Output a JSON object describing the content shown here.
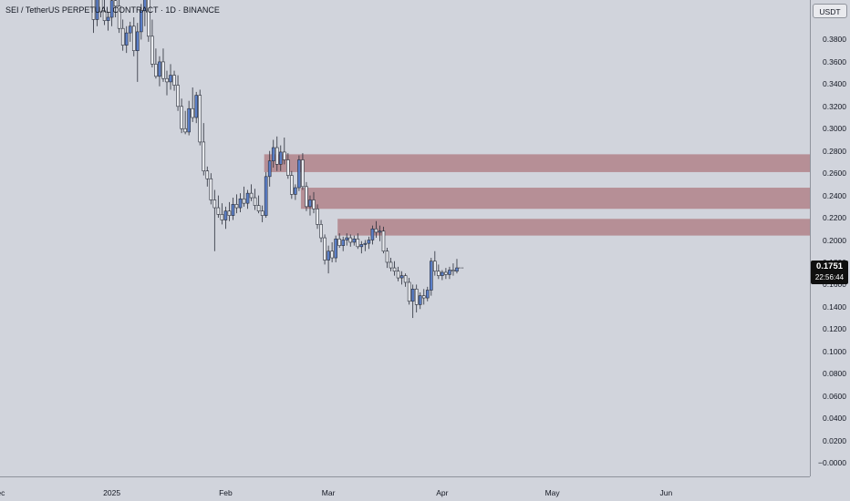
{
  "header": {
    "title": "SEI / TetherUS PERPETUAL CONTRACT · 1D · BINANCE",
    "currency": "USDT"
  },
  "last_price": {
    "value": "0.1751",
    "countdown": "22:56:44"
  },
  "colors": {
    "background": "#d1d4dc",
    "up_body": "#5b7fc8",
    "down_body": "#e9ebef",
    "wick": "#2a2e39",
    "zone": "#b2838a"
  },
  "chart_data": {
    "type": "candlestick",
    "title": "SEI / TetherUS PERPETUAL CONTRACT · 1D · BINANCE",
    "ylabel": "USDT",
    "ylim": [
      -0.01,
      0.42
    ],
    "y_ticks": [
      "0.3800",
      "0.3600",
      "0.3400",
      "0.3200",
      "0.3000",
      "0.2800",
      "0.2600",
      "0.2400",
      "0.2200",
      "0.2000",
      "0.1800",
      "0.1600",
      "0.1400",
      "0.1200",
      "0.1000",
      "0.0800",
      "0.0600",
      "0.0400",
      "0.0200",
      "−0.0000"
    ],
    "y_tick_values": [
      0.38,
      0.36,
      0.34,
      0.32,
      0.3,
      0.28,
      0.26,
      0.24,
      0.22,
      0.2,
      0.18,
      0.16,
      0.14,
      0.12,
      0.1,
      0.08,
      0.06,
      0.04,
      0.02,
      0.0
    ],
    "x_ticks": [
      "Dec",
      "2025",
      "Feb",
      "Mar",
      "Apr",
      "May",
      "Jun"
    ],
    "x_tick_day_index": [
      -26,
      5,
      36,
      64,
      95,
      125,
      156
    ],
    "first_candle_day_index": 0,
    "candles": [
      [
        0.42,
        0.432,
        0.386,
        0.398
      ],
      [
        0.398,
        0.425,
        0.392,
        0.418
      ],
      [
        0.418,
        0.44,
        0.4,
        0.405
      ],
      [
        0.405,
        0.418,
        0.393,
        0.397
      ],
      [
        0.397,
        0.405,
        0.388,
        0.4
      ],
      [
        0.4,
        0.42,
        0.392,
        0.415
      ],
      [
        0.415,
        0.43,
        0.4,
        0.41
      ],
      [
        0.41,
        0.42,
        0.386,
        0.39
      ],
      [
        0.39,
        0.398,
        0.37,
        0.375
      ],
      [
        0.375,
        0.392,
        0.368,
        0.386
      ],
      [
        0.386,
        0.396,
        0.378,
        0.392
      ],
      [
        0.392,
        0.4,
        0.365,
        0.37
      ],
      [
        0.37,
        0.395,
        0.342,
        0.387
      ],
      [
        0.387,
        0.412,
        0.38,
        0.406
      ],
      [
        0.406,
        0.43,
        0.392,
        0.42
      ],
      [
        0.42,
        0.425,
        0.378,
        0.383
      ],
      [
        0.383,
        0.398,
        0.355,
        0.358
      ],
      [
        0.358,
        0.372,
        0.345,
        0.347
      ],
      [
        0.347,
        0.365,
        0.338,
        0.36
      ],
      [
        0.36,
        0.372,
        0.342,
        0.345
      ],
      [
        0.345,
        0.352,
        0.33,
        0.342
      ],
      [
        0.342,
        0.358,
        0.335,
        0.348
      ],
      [
        0.348,
        0.352,
        0.334,
        0.339
      ],
      [
        0.339,
        0.348,
        0.316,
        0.32
      ],
      [
        0.32,
        0.327,
        0.296,
        0.3
      ],
      [
        0.3,
        0.316,
        0.295,
        0.297
      ],
      [
        0.297,
        0.325,
        0.294,
        0.318
      ],
      [
        0.318,
        0.337,
        0.306,
        0.31
      ],
      [
        0.31,
        0.333,
        0.305,
        0.33
      ],
      [
        0.33,
        0.335,
        0.285,
        0.288
      ],
      [
        0.288,
        0.305,
        0.258,
        0.262
      ],
      [
        0.262,
        0.266,
        0.248,
        0.255
      ],
      [
        0.255,
        0.26,
        0.232,
        0.236
      ],
      [
        0.236,
        0.245,
        0.19,
        0.229
      ],
      [
        0.229,
        0.24,
        0.22,
        0.223
      ],
      [
        0.223,
        0.233,
        0.214,
        0.218
      ],
      [
        0.218,
        0.23,
        0.21,
        0.226
      ],
      [
        0.226,
        0.234,
        0.217,
        0.222
      ],
      [
        0.222,
        0.238,
        0.218,
        0.232
      ],
      [
        0.232,
        0.241,
        0.224,
        0.229
      ],
      [
        0.229,
        0.242,
        0.225,
        0.237
      ],
      [
        0.237,
        0.248,
        0.23,
        0.233
      ],
      [
        0.233,
        0.245,
        0.228,
        0.242
      ],
      [
        0.242,
        0.25,
        0.235,
        0.238
      ],
      [
        0.238,
        0.246,
        0.227,
        0.231
      ],
      [
        0.231,
        0.24,
        0.224,
        0.226
      ],
      [
        0.226,
        0.231,
        0.216,
        0.222
      ],
      [
        0.222,
        0.261,
        0.22,
        0.257
      ],
      [
        0.257,
        0.28,
        0.248,
        0.271
      ],
      [
        0.271,
        0.29,
        0.265,
        0.283
      ],
      [
        0.283,
        0.293,
        0.262,
        0.268
      ],
      [
        0.268,
        0.285,
        0.262,
        0.279
      ],
      [
        0.279,
        0.292,
        0.268,
        0.272
      ],
      [
        0.272,
        0.278,
        0.255,
        0.258
      ],
      [
        0.258,
        0.262,
        0.237,
        0.241
      ],
      [
        0.241,
        0.25,
        0.236,
        0.247
      ],
      [
        0.247,
        0.276,
        0.244,
        0.272
      ],
      [
        0.272,
        0.278,
        0.245,
        0.248
      ],
      [
        0.248,
        0.252,
        0.226,
        0.23
      ],
      [
        0.23,
        0.24,
        0.222,
        0.236
      ],
      [
        0.236,
        0.243,
        0.224,
        0.228
      ],
      [
        0.228,
        0.232,
        0.21,
        0.214
      ],
      [
        0.214,
        0.218,
        0.198,
        0.202
      ],
      [
        0.202,
        0.205,
        0.178,
        0.182
      ],
      [
        0.182,
        0.195,
        0.17,
        0.19
      ],
      [
        0.19,
        0.198,
        0.18,
        0.184
      ],
      [
        0.184,
        0.204,
        0.18,
        0.201
      ],
      [
        0.201,
        0.206,
        0.193,
        0.195
      ],
      [
        0.195,
        0.203,
        0.19,
        0.2
      ],
      [
        0.2,
        0.206,
        0.195,
        0.202
      ],
      [
        0.202,
        0.205,
        0.194,
        0.198
      ],
      [
        0.198,
        0.204,
        0.195,
        0.201
      ],
      [
        0.201,
        0.206,
        0.192,
        0.194
      ],
      [
        0.194,
        0.199,
        0.188,
        0.196
      ],
      [
        0.196,
        0.2,
        0.19,
        0.197
      ],
      [
        0.197,
        0.203,
        0.192,
        0.2
      ],
      [
        0.2,
        0.213,
        0.196,
        0.21
      ],
      [
        0.21,
        0.217,
        0.202,
        0.207
      ],
      [
        0.207,
        0.213,
        0.199,
        0.208
      ],
      [
        0.208,
        0.212,
        0.188,
        0.19
      ],
      [
        0.19,
        0.193,
        0.175,
        0.18
      ],
      [
        0.18,
        0.184,
        0.172,
        0.175
      ],
      [
        0.175,
        0.181,
        0.168,
        0.172
      ],
      [
        0.172,
        0.176,
        0.163,
        0.166
      ],
      [
        0.166,
        0.172,
        0.16,
        0.168
      ],
      [
        0.168,
        0.17,
        0.158,
        0.162
      ],
      [
        0.162,
        0.166,
        0.142,
        0.145
      ],
      [
        0.145,
        0.16,
        0.13,
        0.156
      ],
      [
        0.156,
        0.16,
        0.135,
        0.142
      ],
      [
        0.142,
        0.153,
        0.138,
        0.15
      ],
      [
        0.15,
        0.156,
        0.142,
        0.148
      ],
      [
        0.148,
        0.158,
        0.145,
        0.155
      ],
      [
        0.155,
        0.184,
        0.15,
        0.181
      ],
      [
        0.181,
        0.19,
        0.168,
        0.172
      ],
      [
        0.172,
        0.178,
        0.165,
        0.168
      ],
      [
        0.168,
        0.173,
        0.164,
        0.171
      ],
      [
        0.171,
        0.175,
        0.165,
        0.169
      ],
      [
        0.169,
        0.176,
        0.165,
        0.173
      ],
      [
        0.173,
        0.179,
        0.168,
        0.172
      ],
      [
        0.172,
        0.183,
        0.17,
        0.175
      ]
    ],
    "zones": [
      {
        "start_day_index": 47,
        "y_top": 0.277,
        "y_bottom": 0.261
      },
      {
        "start_day_index": 57,
        "y_top": 0.247,
        "y_bottom": 0.228
      },
      {
        "start_day_index": 67,
        "y_top": 0.219,
        "y_bottom": 0.204
      }
    ]
  }
}
